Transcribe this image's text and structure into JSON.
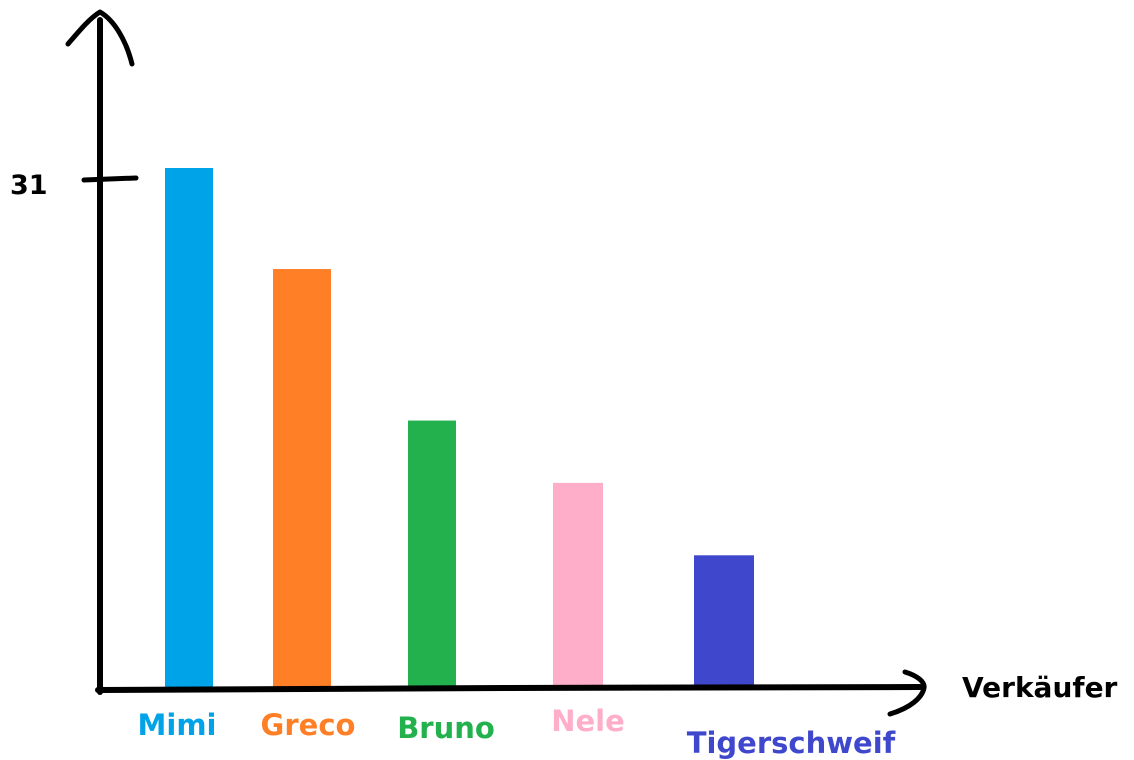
{
  "chart_data": {
    "type": "bar",
    "title": "",
    "xlabel": "Verkäufer",
    "ylabel": "",
    "ylim": [
      0,
      31
    ],
    "yticks": [
      "31"
    ],
    "grid": false,
    "categories": [
      "Mimi",
      "Greco",
      "Bruno",
      "Nele",
      "Tigerschweif"
    ],
    "values": [
      31,
      25,
      16,
      12.3,
      8
    ],
    "colors": [
      "#00A2E8",
      "#FF7F27",
      "#22B14C",
      "#FFAEC9",
      "#3F48CC"
    ]
  }
}
